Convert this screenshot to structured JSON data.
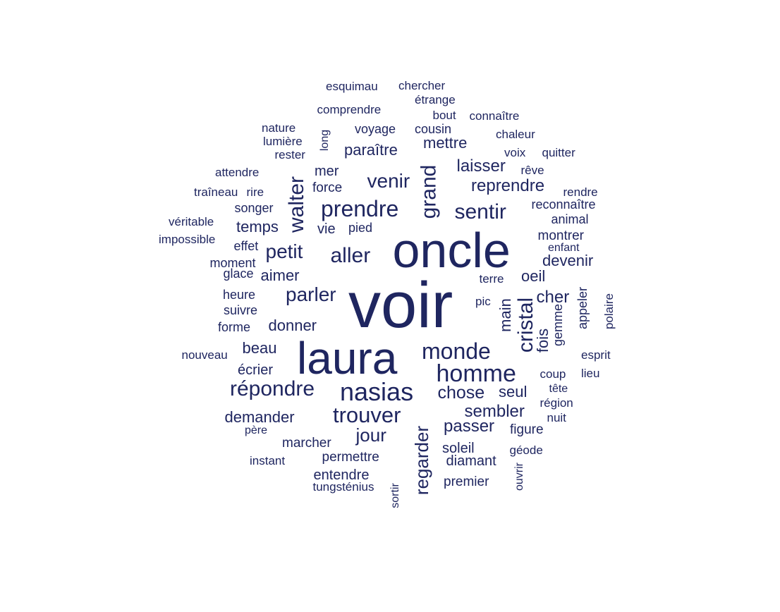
{
  "word_cloud": {
    "color": "#1F2660",
    "words": [
      {
        "text": "voir"
      },
      {
        "text": "oncle"
      },
      {
        "text": "laura"
      },
      {
        "text": "nasias"
      },
      {
        "text": "homme"
      },
      {
        "text": "monde"
      },
      {
        "text": "prendre"
      },
      {
        "text": "trouver"
      },
      {
        "text": "répondre"
      },
      {
        "text": "cristal"
      },
      {
        "text": "sentir"
      },
      {
        "text": "aller"
      },
      {
        "text": "grand"
      },
      {
        "text": "walter"
      },
      {
        "text": "venir"
      },
      {
        "text": "parler"
      },
      {
        "text": "petit"
      },
      {
        "text": "regarder"
      },
      {
        "text": "jour"
      },
      {
        "text": "chose"
      },
      {
        "text": "passer"
      },
      {
        "text": "sembler"
      },
      {
        "text": "reprendre"
      },
      {
        "text": "laisser"
      },
      {
        "text": "devenir"
      },
      {
        "text": "donner"
      },
      {
        "text": "aimer"
      },
      {
        "text": "beau"
      },
      {
        "text": "demander"
      },
      {
        "text": "temps"
      },
      {
        "text": "cher"
      },
      {
        "text": "oeil"
      },
      {
        "text": "seul"
      },
      {
        "text": "mettre"
      },
      {
        "text": "paraître"
      },
      {
        "text": "main"
      },
      {
        "text": "fois"
      },
      {
        "text": "diamant"
      },
      {
        "text": "entendre"
      },
      {
        "text": "soleil"
      },
      {
        "text": "mer"
      },
      {
        "text": "vie"
      },
      {
        "text": "écrier"
      },
      {
        "text": "marcher"
      },
      {
        "text": "permettre"
      },
      {
        "text": "montrer"
      },
      {
        "text": "figure"
      },
      {
        "text": "premier"
      },
      {
        "text": "force"
      },
      {
        "text": "voyage"
      },
      {
        "text": "cousin"
      },
      {
        "text": "reconnaître"
      },
      {
        "text": "animal"
      },
      {
        "text": "moment"
      },
      {
        "text": "suivre"
      },
      {
        "text": "heure"
      },
      {
        "text": "forme"
      },
      {
        "text": "pied"
      },
      {
        "text": "effet"
      },
      {
        "text": "songer"
      },
      {
        "text": "glace"
      },
      {
        "text": "gemme"
      },
      {
        "text": "appeler"
      },
      {
        "text": "polaire"
      },
      {
        "text": "esprit"
      },
      {
        "text": "nouveau"
      },
      {
        "text": "coup"
      },
      {
        "text": "lieu"
      },
      {
        "text": "tête"
      },
      {
        "text": "région"
      },
      {
        "text": "nuit"
      },
      {
        "text": "géode"
      },
      {
        "text": "ouvrir"
      },
      {
        "text": "terre"
      },
      {
        "text": "pic"
      },
      {
        "text": "rendre"
      },
      {
        "text": "rêve"
      },
      {
        "text": "voix"
      },
      {
        "text": "quitter"
      },
      {
        "text": "chaleur"
      },
      {
        "text": "connaître"
      },
      {
        "text": "bout"
      },
      {
        "text": "étrange"
      },
      {
        "text": "comprendre"
      },
      {
        "text": "esquimau"
      },
      {
        "text": "chercher"
      },
      {
        "text": "nature"
      },
      {
        "text": "lumière"
      },
      {
        "text": "rester"
      },
      {
        "text": "long"
      },
      {
        "text": "attendre"
      },
      {
        "text": "traîneau"
      },
      {
        "text": "rire"
      },
      {
        "text": "véritable"
      },
      {
        "text": "impossible"
      },
      {
        "text": "enfant"
      },
      {
        "text": "père"
      },
      {
        "text": "instant"
      },
      {
        "text": "tungsténius"
      },
      {
        "text": "sortir"
      }
    ]
  }
}
